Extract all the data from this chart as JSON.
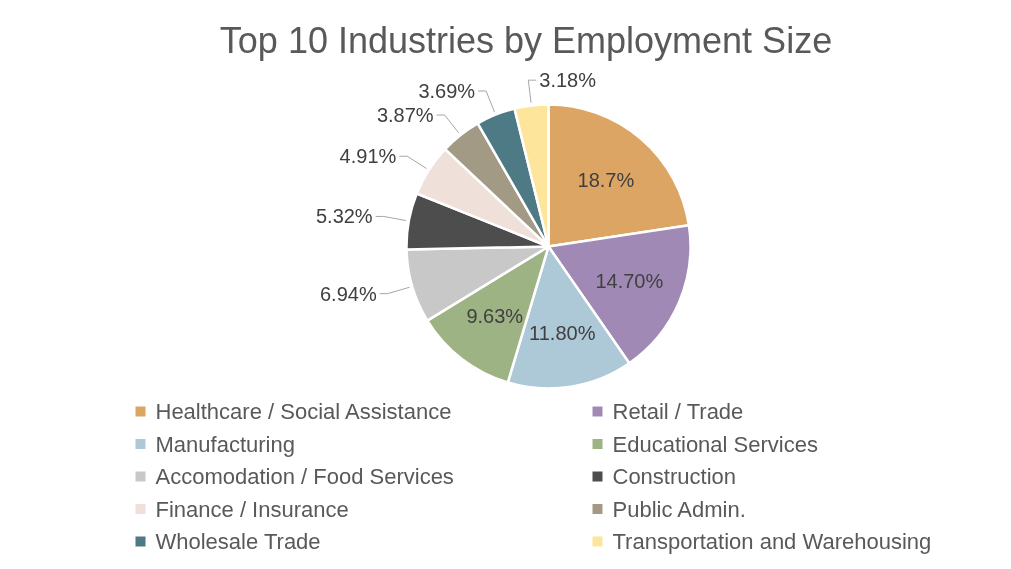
{
  "chart_data": {
    "type": "pie",
    "title": "Top 10 Industries by Employment Size",
    "categories": [
      "Healthcare / Social Assistance",
      "Retail / Trade",
      "Manufacturing",
      "Educational Services",
      "Accomodation / Food Services",
      "Construction",
      "Finance / Insurance",
      "Public Admin.",
      "Wholesale Trade",
      "Transportation and Warehousing"
    ],
    "values": [
      18.7,
      14.7,
      11.8,
      9.63,
      6.94,
      5.32,
      4.91,
      3.87,
      3.69,
      3.18
    ],
    "value_labels": [
      "18.7%",
      "14.70%",
      "11.80%",
      "9.63%",
      "6.94%",
      "5.32%",
      "4.91%",
      "3.87%",
      "3.69%",
      "3.18%"
    ],
    "colors": [
      "#dda563",
      "#a08ab5",
      "#adc8d6",
      "#9db384",
      "#c8c8c8",
      "#4d4d4d",
      "#f0e0da",
      "#a39a85",
      "#4e7a86",
      "#fde69b"
    ],
    "legend": "bottom"
  }
}
